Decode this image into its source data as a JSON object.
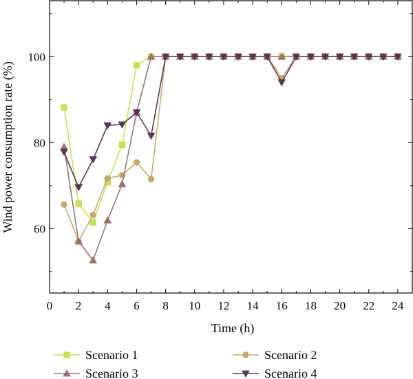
{
  "chart_data": {
    "type": "line",
    "xlabel": "Time (h)",
    "ylabel": "Wind power consumption rate (%)",
    "xlim": [
      0,
      25
    ],
    "ylim": [
      45,
      113
    ],
    "xticks": [
      0,
      2,
      4,
      6,
      8,
      10,
      12,
      14,
      16,
      18,
      20,
      22,
      24
    ],
    "yticks": [
      60,
      80,
      100
    ],
    "grid": false,
    "legend_position": "bottom",
    "x": [
      1,
      2,
      3,
      4,
      5,
      6,
      7,
      8,
      9,
      10,
      11,
      12,
      13,
      14,
      15,
      16,
      17,
      18,
      19,
      20,
      21,
      22,
      23,
      24
    ],
    "series": [
      {
        "name": "Scenario 1",
        "color": "#c5e05a",
        "marker": "square",
        "values": [
          88.2,
          65.8,
          61.4,
          70.8,
          79.5,
          98.0,
          100,
          100,
          100,
          100,
          100,
          100,
          100,
          100,
          100,
          100,
          100,
          100,
          100,
          100,
          100,
          100,
          100,
          100
        ]
      },
      {
        "name": "Scenario 2",
        "color": "#c4a86e",
        "marker": "circle",
        "values": [
          65.6,
          57.0,
          63.2,
          71.7,
          72.4,
          75.4,
          71.5,
          100,
          100,
          100,
          100,
          100,
          100,
          100,
          100,
          95.0,
          100,
          100,
          100,
          100,
          100,
          100,
          100,
          100
        ]
      },
      {
        "name": "Scenario 3",
        "color": "#9a7070",
        "marker": "triangle-up",
        "values": [
          79.0,
          57.0,
          52.6,
          61.9,
          70.3,
          87.0,
          100,
          100,
          100,
          100,
          100,
          100,
          100,
          100,
          100,
          100,
          100,
          100,
          100,
          100,
          100,
          100,
          100,
          100
        ]
      },
      {
        "name": "Scenario 4",
        "color": "#5a3453",
        "marker": "triangle-down",
        "values": [
          77.8,
          69.6,
          76.1,
          84.0,
          84.2,
          87.0,
          81.6,
          100,
          100,
          100,
          100,
          100,
          100,
          100,
          100,
          94.0,
          100,
          100,
          100,
          100,
          100,
          100,
          100,
          100
        ]
      }
    ]
  }
}
